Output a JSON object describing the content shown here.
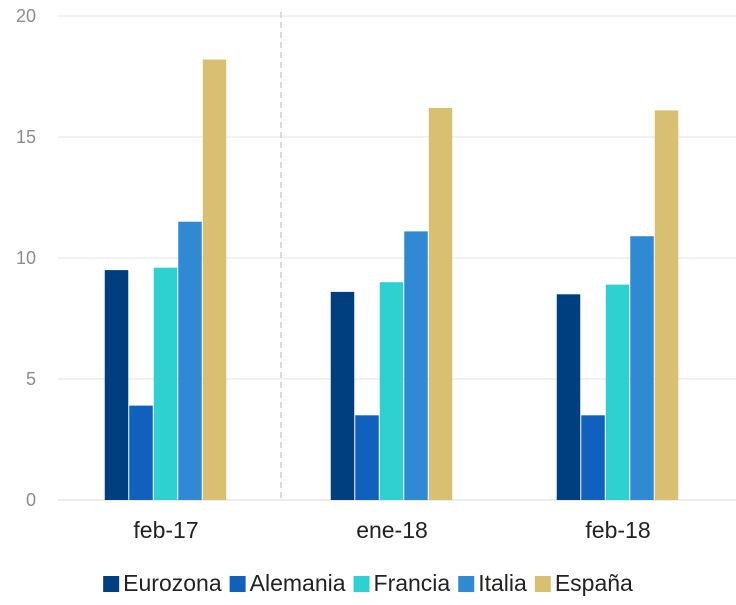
{
  "chart_data": {
    "type": "bar",
    "title": "",
    "xlabel": "",
    "ylabel": "",
    "categories": [
      "feb-17",
      "ene-18",
      "feb-18"
    ],
    "ylim": [
      0,
      20
    ],
    "yticks": [
      0,
      5,
      10,
      15,
      20
    ],
    "grid": true,
    "legend_position": "bottom",
    "series": [
      {
        "name": "Eurozona",
        "color": "#003f7f",
        "values": [
          9.5,
          8.6,
          8.5
        ]
      },
      {
        "name": "Alemania",
        "color": "#1060bd",
        "values": [
          3.9,
          3.5,
          3.5
        ]
      },
      {
        "name": "Francia",
        "color": "#2ed0d0",
        "values": [
          9.6,
          9.0,
          8.9
        ]
      },
      {
        "name": "Italia",
        "color": "#2f8ad3",
        "values": [
          11.5,
          11.1,
          10.9
        ]
      },
      {
        "name": "España",
        "color": "#d9bf72",
        "values": [
          18.2,
          16.2,
          16.1
        ]
      }
    ]
  }
}
